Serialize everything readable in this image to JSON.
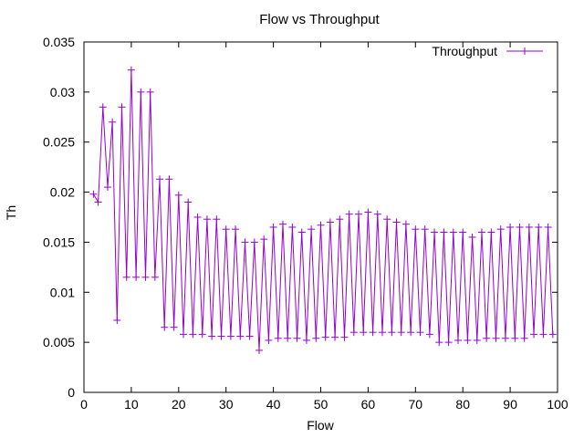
{
  "chart_data": {
    "type": "line",
    "title": "Flow vs Throughput",
    "xlabel": "Flow",
    "ylabel": "Th",
    "xlim": [
      0,
      100
    ],
    "ylim": [
      0,
      0.035
    ],
    "xticks": [
      "0",
      "10",
      "20",
      "30",
      "40",
      "50",
      "60",
      "70",
      "80",
      "90",
      "100"
    ],
    "yticks": [
      "0",
      "0.005",
      "0.01",
      "0.015",
      "0.02",
      "0.025",
      "0.03",
      "0.035"
    ],
    "grid": false,
    "legend": "top-right",
    "series_color": "#9400d3",
    "series": [
      {
        "name": "Throughput",
        "x": [
          2,
          3,
          4,
          5,
          6,
          7,
          8,
          9,
          10,
          11,
          12,
          13,
          14,
          15,
          16,
          17,
          18,
          19,
          20,
          21,
          22,
          23,
          24,
          25,
          26,
          27,
          28,
          29,
          30,
          31,
          32,
          33,
          34,
          35,
          36,
          37,
          38,
          39,
          40,
          41,
          42,
          43,
          44,
          45,
          46,
          47,
          48,
          49,
          50,
          51,
          52,
          53,
          54,
          55,
          56,
          57,
          58,
          59,
          60,
          61,
          62,
          63,
          64,
          65,
          66,
          67,
          68,
          69,
          70,
          71,
          72,
          73,
          74,
          75,
          76,
          77,
          78,
          79,
          80,
          81,
          82,
          83,
          84,
          85,
          86,
          87,
          88,
          89,
          90,
          91,
          92,
          93,
          94,
          95,
          96,
          97,
          98,
          99
        ],
        "y": [
          0.0198,
          0.019,
          0.0285,
          0.0205,
          0.027,
          0.0072,
          0.0285,
          0.0115,
          0.0322,
          0.0115,
          0.03,
          0.0115,
          0.03,
          0.0115,
          0.0213,
          0.0065,
          0.0213,
          0.0065,
          0.0197,
          0.0058,
          0.019,
          0.0058,
          0.0175,
          0.0058,
          0.0173,
          0.0056,
          0.0173,
          0.0056,
          0.0163,
          0.0056,
          0.0163,
          0.0056,
          0.015,
          0.0056,
          0.015,
          0.0042,
          0.0153,
          0.0052,
          0.0165,
          0.0054,
          0.0168,
          0.0054,
          0.0165,
          0.0054,
          0.016,
          0.0052,
          0.0163,
          0.0054,
          0.0167,
          0.0055,
          0.017,
          0.0055,
          0.0173,
          0.0055,
          0.0178,
          0.006,
          0.0178,
          0.006,
          0.018,
          0.006,
          0.0178,
          0.006,
          0.0173,
          0.006,
          0.017,
          0.006,
          0.0168,
          0.006,
          0.0163,
          0.006,
          0.0163,
          0.0058,
          0.016,
          0.005,
          0.016,
          0.005,
          0.016,
          0.0052,
          0.016,
          0.0052,
          0.0155,
          0.0052,
          0.016,
          0.0054,
          0.016,
          0.0054,
          0.0163,
          0.0054,
          0.0165,
          0.0054,
          0.0165,
          0.0054,
          0.0165,
          0.0058,
          0.0165,
          0.0058,
          0.0165,
          0.0058
        ]
      }
    ]
  }
}
